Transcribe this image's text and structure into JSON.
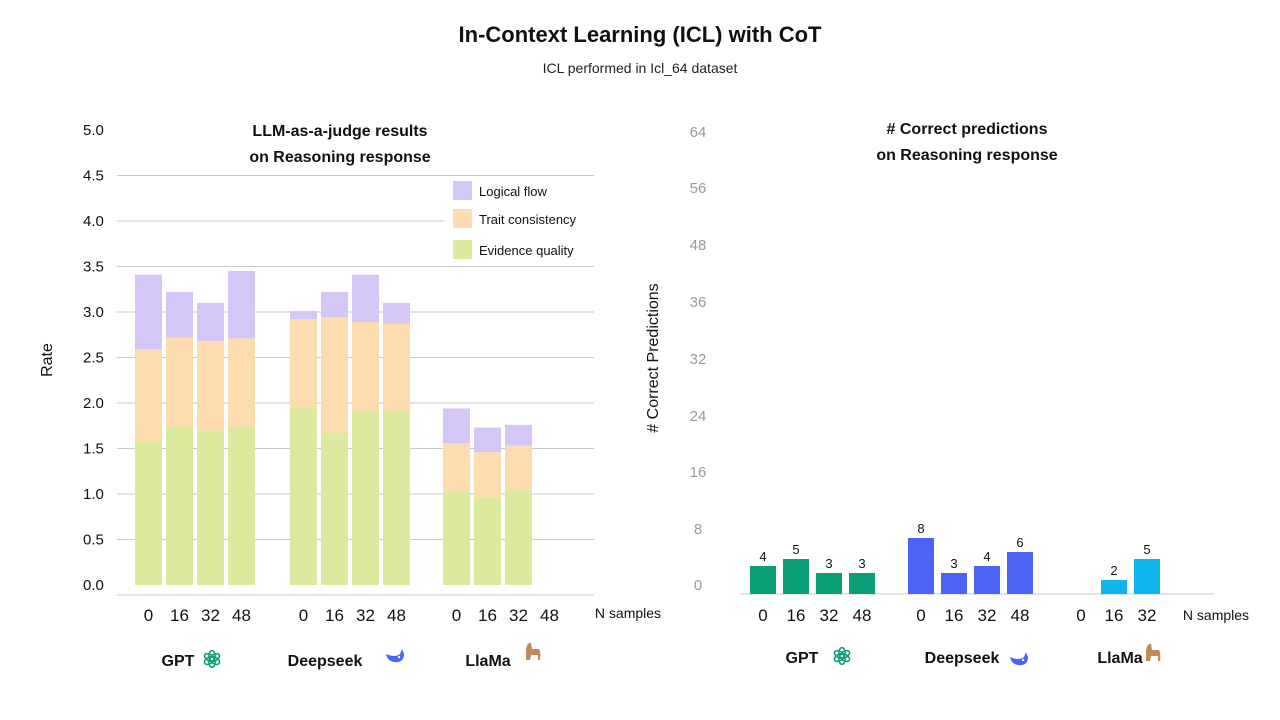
{
  "title": "In-Context Learning (ICL) with CoT",
  "subtitle": "ICL performed in Icl_64 dataset",
  "colors": {
    "logical_flow": "#d4c6f6",
    "trait_consistency": "#fddcb0",
    "evidence_quality": "#dcea9e",
    "gpt": "#0b9f77",
    "deepseek": "#4c64f5",
    "llama": "#10b4ef",
    "grid": "#c9c9c9",
    "tick_light": "#9a9a9a"
  },
  "chart_data": [
    {
      "type": "bar",
      "stacked": true,
      "title_lines": [
        "LLM-as-a-judge results",
        "on Reasoning response"
      ],
      "ylabel": "Rate",
      "xlabel": "N samples",
      "ylim": [
        0,
        5
      ],
      "yticks": [
        "0.0",
        "0.5",
        "1.0",
        "1.5",
        "2.0",
        "2.5",
        "3.0",
        "3.5",
        "4.0",
        "4.5",
        "5.0"
      ],
      "grid": true,
      "legend_position": "top-right",
      "groups": [
        {
          "name": "GPT",
          "icon": "openai-logo-icon",
          "categories": [
            "0",
            "16",
            "32",
            "48"
          ]
        },
        {
          "name": "Deepseek",
          "icon": "deepseek-whale-icon",
          "categories": [
            "0",
            "16",
            "32",
            "48"
          ]
        },
        {
          "name": "LlaMa",
          "icon": "llama-icon",
          "categories": [
            "0",
            "16",
            "32",
            "48"
          ]
        }
      ],
      "series": [
        {
          "name": "Evidence quality",
          "color_key": "evidence_quality",
          "values": [
            [
              1.58,
              1.73,
              1.7,
              1.73
            ],
            [
              1.95,
              1.67,
              1.91,
              1.91
            ],
            [
              1.03,
              0.96,
              1.05,
              null
            ]
          ]
        },
        {
          "name": "Trait consistency",
          "color_key": "trait_consistency",
          "values": [
            [
              1.01,
              0.99,
              0.98,
              0.98
            ],
            [
              0.97,
              1.27,
              0.98,
              0.96
            ],
            [
              0.53,
              0.5,
              0.48,
              null
            ]
          ]
        },
        {
          "name": "Logical flow",
          "color_key": "logical_flow",
          "values": [
            [
              0.82,
              0.5,
              0.42,
              0.74
            ],
            [
              0.09,
              0.28,
              0.52,
              0.23
            ],
            [
              0.38,
              0.27,
              0.23,
              null
            ]
          ]
        }
      ],
      "legend": [
        "Logical flow",
        "Trait consistency",
        "Evidence quality"
      ]
    },
    {
      "type": "bar",
      "title_lines": [
        "# Correct predictions",
        "on Reasoning response"
      ],
      "ylabel": "# Correct Predictions",
      "xlabel": "N samples",
      "ylim": [
        0,
        64
      ],
      "yticks": [
        "0",
        "8",
        "16",
        "24",
        "32",
        "36",
        "48",
        "56",
        "64"
      ],
      "groups": [
        {
          "name": "GPT",
          "icon": "openai-logo-icon",
          "color_key": "gpt",
          "categories": [
            "0",
            "16",
            "32",
            "48"
          ],
          "values": [
            4,
            5,
            3,
            3
          ],
          "labels": [
            "4",
            "5",
            "3",
            "3"
          ]
        },
        {
          "name": "Deepseek",
          "icon": "deepseek-whale-icon",
          "color_key": "deepseek",
          "categories": [
            "0",
            "16",
            "32",
            "48"
          ],
          "values": [
            8,
            3,
            4,
            6
          ],
          "labels": [
            "8",
            "3",
            "4",
            "6"
          ]
        },
        {
          "name": "LlaMa",
          "icon": "llama-icon",
          "color_key": "llama",
          "categories": [
            "0",
            "16",
            "32"
          ],
          "values": [
            0,
            2,
            5
          ],
          "labels": [
            "",
            "2",
            "5"
          ]
        }
      ]
    }
  ]
}
